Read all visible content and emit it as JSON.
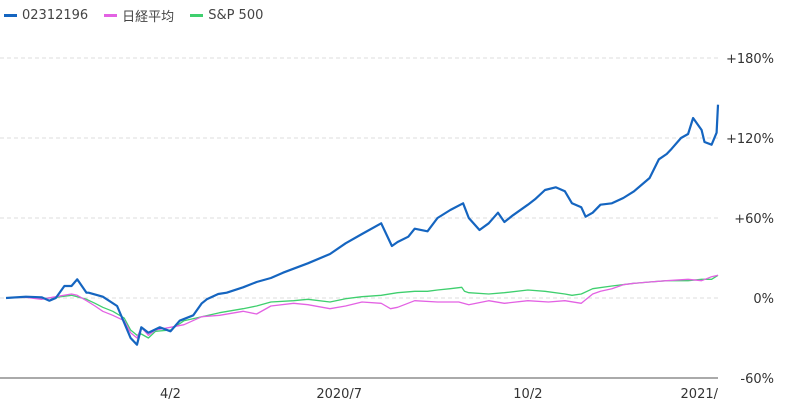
{
  "chart_data": {
    "type": "line",
    "title": "",
    "xlabel": "",
    "ylabel": "",
    "ylim": [
      -60,
      180
    ],
    "yticks": [
      180,
      120,
      60,
      0,
      -60
    ],
    "ytick_labels": [
      "+180%",
      "+120%",
      "+60%",
      "0%",
      "-60%"
    ],
    "xlim": [
      0,
      100
    ],
    "xticks": [
      {
        "x": 23.1,
        "label": "4/2"
      },
      {
        "x": 46.8,
        "label": "2020/7"
      },
      {
        "x": 73.3,
        "label": "10/2"
      },
      {
        "x": 100,
        "label": "2021/"
      }
    ],
    "grid": "horizontal-dashed",
    "legend_position": "top-left",
    "series": [
      {
        "name": "02312196",
        "color": "#1565c0",
        "points": [
          [
            0,
            0
          ],
          [
            2.8,
            1
          ],
          [
            5,
            0.5
          ],
          [
            6.1,
            -2
          ],
          [
            7,
            0
          ],
          [
            8.2,
            9
          ],
          [
            8.4,
            9
          ],
          [
            9.2,
            9
          ],
          [
            10,
            14
          ],
          [
            11.3,
            4
          ],
          [
            11.6,
            4
          ],
          [
            13.6,
            1
          ],
          [
            15.6,
            -6
          ],
          [
            17.5,
            -30
          ],
          [
            18.4,
            -35
          ],
          [
            19,
            -22
          ],
          [
            20,
            -26
          ],
          [
            21.6,
            -22
          ],
          [
            23.1,
            -25
          ],
          [
            24.4,
            -17
          ],
          [
            26.3,
            -13
          ],
          [
            27.5,
            -4
          ],
          [
            28.2,
            -1
          ],
          [
            29.8,
            3
          ],
          [
            31,
            4
          ],
          [
            33.3,
            8
          ],
          [
            35.2,
            12
          ],
          [
            37.2,
            15
          ],
          [
            38.9,
            19
          ],
          [
            40.4,
            22
          ],
          [
            42.4,
            26
          ],
          [
            45.5,
            33
          ],
          [
            47.7,
            41
          ],
          [
            50,
            48
          ],
          [
            52.7,
            56
          ],
          [
            54.2,
            39
          ],
          [
            55,
            42
          ],
          [
            56.5,
            46
          ],
          [
            57.4,
            52
          ],
          [
            59.2,
            50
          ],
          [
            60.6,
            60
          ],
          [
            62.4,
            66
          ],
          [
            64.2,
            71
          ],
          [
            65,
            60
          ],
          [
            66.5,
            51
          ],
          [
            67.8,
            56
          ],
          [
            69.1,
            64
          ],
          [
            70,
            57
          ],
          [
            71.2,
            62
          ],
          [
            73.3,
            70
          ],
          [
            74.3,
            74
          ],
          [
            75.7,
            81
          ],
          [
            77.2,
            83
          ],
          [
            78.5,
            80
          ],
          [
            79.5,
            71
          ],
          [
            80.8,
            68
          ],
          [
            81.4,
            61
          ],
          [
            82.4,
            64
          ],
          [
            83.5,
            70
          ],
          [
            85.1,
            71
          ],
          [
            86.7,
            75
          ],
          [
            88.2,
            80
          ],
          [
            90.4,
            90
          ],
          [
            91.7,
            104
          ],
          [
            92.8,
            108
          ],
          [
            93.5,
            112
          ],
          [
            94.8,
            120
          ],
          [
            95.8,
            123
          ],
          [
            96.5,
            135
          ],
          [
            97.7,
            126
          ],
          [
            98.1,
            117
          ],
          [
            99.1,
            115
          ],
          [
            99.8,
            124
          ],
          [
            100,
            145
          ]
        ]
      },
      {
        "name": "日経平均",
        "color": "#e362e3",
        "points": [
          [
            0,
            0
          ],
          [
            2.8,
            0.5
          ],
          [
            5,
            -1
          ],
          [
            7,
            1
          ],
          [
            9.2,
            3
          ],
          [
            10,
            2
          ],
          [
            11.3,
            -2
          ],
          [
            12.5,
            -6
          ],
          [
            13.6,
            -10
          ],
          [
            15,
            -13
          ],
          [
            16.6,
            -17
          ],
          [
            17.5,
            -26
          ],
          [
            18.4,
            -30
          ],
          [
            19,
            -22
          ],
          [
            20,
            -28
          ],
          [
            21,
            -24
          ],
          [
            23.1,
            -22
          ],
          [
            25,
            -20
          ],
          [
            27.5,
            -14
          ],
          [
            30,
            -13
          ],
          [
            33.3,
            -10
          ],
          [
            35.2,
            -12
          ],
          [
            37.2,
            -6
          ],
          [
            40.4,
            -4
          ],
          [
            42.4,
            -5
          ],
          [
            45.5,
            -8
          ],
          [
            47.7,
            -6
          ],
          [
            50,
            -3
          ],
          [
            52.7,
            -4
          ],
          [
            54,
            -8
          ],
          [
            55,
            -7
          ],
          [
            57.4,
            -2
          ],
          [
            60.6,
            -3
          ],
          [
            63.6,
            -3
          ],
          [
            65,
            -5
          ],
          [
            67.8,
            -2
          ],
          [
            70,
            -4
          ],
          [
            73.3,
            -2
          ],
          [
            76.2,
            -3
          ],
          [
            78.5,
            -2
          ],
          [
            80.8,
            -4
          ],
          [
            82.4,
            3
          ],
          [
            83.5,
            5
          ],
          [
            85.1,
            7
          ],
          [
            86.7,
            10
          ],
          [
            88.2,
            11
          ],
          [
            90.4,
            12
          ],
          [
            92.8,
            13
          ],
          [
            95.8,
            14
          ],
          [
            97.7,
            13
          ],
          [
            99.1,
            16
          ],
          [
            100,
            17
          ]
        ]
      },
      {
        "name": "S&P 500",
        "color": "#3fcf6e",
        "points": [
          [
            0,
            0
          ],
          [
            2.8,
            0.5
          ],
          [
            5,
            -0.5
          ],
          [
            7,
            0.5
          ],
          [
            9.2,
            2
          ],
          [
            10,
            1
          ],
          [
            11.3,
            -1
          ],
          [
            12.5,
            -4
          ],
          [
            13.6,
            -7
          ],
          [
            15,
            -10
          ],
          [
            16.6,
            -15
          ],
          [
            17.5,
            -24
          ],
          [
            18.4,
            -28
          ],
          [
            19,
            -27
          ],
          [
            20,
            -30
          ],
          [
            21,
            -25
          ],
          [
            23.1,
            -24
          ],
          [
            25,
            -17
          ],
          [
            27.5,
            -14
          ],
          [
            30,
            -11
          ],
          [
            33.3,
            -8
          ],
          [
            35.2,
            -6
          ],
          [
            37.2,
            -3
          ],
          [
            40.4,
            -2
          ],
          [
            42.4,
            -1
          ],
          [
            45.5,
            -3
          ],
          [
            47.7,
            -0.5
          ],
          [
            50,
            1
          ],
          [
            52.7,
            2
          ],
          [
            55,
            4
          ],
          [
            57.4,
            5
          ],
          [
            59.2,
            5
          ],
          [
            60.6,
            6
          ],
          [
            62.4,
            7
          ],
          [
            64,
            8
          ],
          [
            64.4,
            5
          ],
          [
            65,
            4
          ],
          [
            67.8,
            3
          ],
          [
            70,
            4
          ],
          [
            73.3,
            6
          ],
          [
            75.7,
            5
          ],
          [
            78.5,
            3
          ],
          [
            79.5,
            2
          ],
          [
            80.8,
            3
          ],
          [
            82.4,
            7
          ],
          [
            85.1,
            9
          ],
          [
            88.2,
            11
          ],
          [
            90.4,
            12
          ],
          [
            92.8,
            13
          ],
          [
            95.8,
            13
          ],
          [
            97.7,
            14
          ],
          [
            99.1,
            14
          ],
          [
            100,
            17
          ]
        ]
      }
    ]
  }
}
